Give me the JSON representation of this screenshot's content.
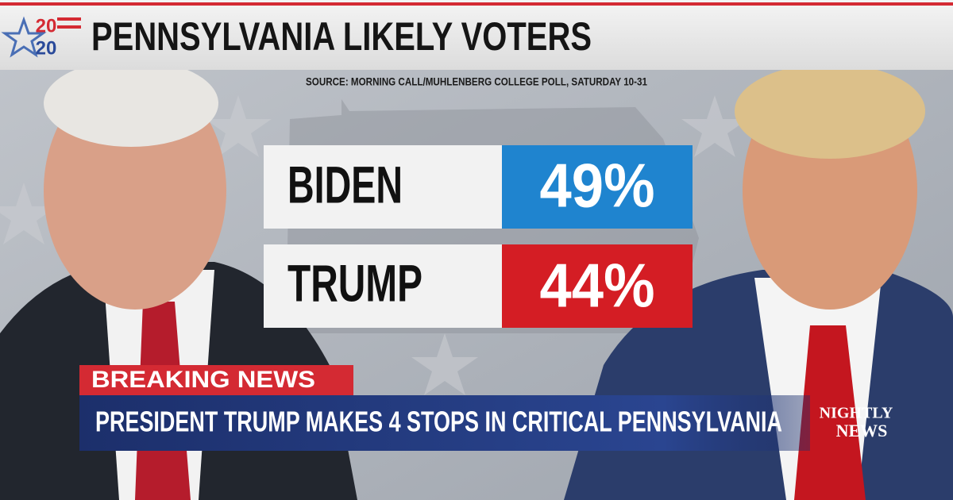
{
  "header": {
    "logo": [
      "20",
      "20"
    ],
    "title": "PENNSYLVANIA LIKELY VOTERS"
  },
  "source": "SOURCE: MORNING CALL/MUHLENBERG COLLEGE POLL,  SATURDAY 10-31",
  "results": [
    {
      "name": "BIDEN",
      "value": "49%"
    },
    {
      "name": "TRUMP",
      "value": "44%"
    }
  ],
  "lower_third": {
    "label": "BREAKING NEWS",
    "headline": "PRESIDENT TRUMP MAKES 4 STOPS IN CRITICAL PENNSYLVANIA"
  },
  "network_logo": [
    "NIGHTLY",
    "NEWS"
  ]
}
